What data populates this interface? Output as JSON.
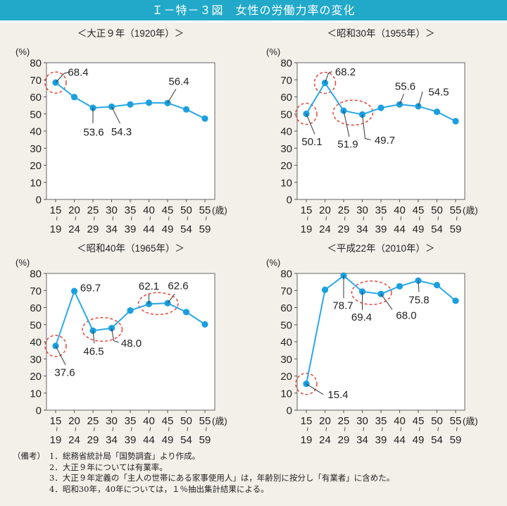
{
  "title": "Ｉ－特－３図　女性の労働力率の変化",
  "colors": {
    "title_bar": "#22a9c9",
    "line": "#2aa8e8",
    "marker": "#1a9fe0",
    "highlight_ellipse": "#e2473a",
    "background": "#f3f0e9"
  },
  "chart_data": [
    {
      "type": "line",
      "title": "＜大正９年（1920年）＞",
      "ylabel": "(%)",
      "xunit": "(歳)",
      "ylim": [
        0,
        80
      ],
      "yticks": [
        0,
        10,
        20,
        30,
        40,
        50,
        60,
        70,
        80
      ],
      "grid": false,
      "categories": [
        "15～19",
        "20～24",
        "25～29",
        "30～34",
        "35～39",
        "40～44",
        "45～49",
        "50～54",
        "55～59"
      ],
      "values": [
        68.4,
        59.9,
        53.6,
        54.3,
        55.6,
        56.6,
        56.4,
        52.7,
        47.3
      ],
      "data_labels": [
        "68.4",
        null,
        "53.6",
        "54.3",
        null,
        null,
        "56.4",
        null,
        null
      ],
      "highlighted": [
        [
          0
        ]
      ]
    },
    {
      "type": "line",
      "title": "＜昭和30年（1955年）＞",
      "ylabel": "(%)",
      "xunit": "(歳)",
      "ylim": [
        0,
        80
      ],
      "yticks": [
        0,
        10,
        20,
        30,
        40,
        50,
        60,
        70,
        80
      ],
      "grid": false,
      "categories": [
        "15～19",
        "20～24",
        "25～29",
        "30～34",
        "35～39",
        "40～44",
        "45～49",
        "50～54",
        "55～59"
      ],
      "values": [
        50.1,
        68.2,
        51.9,
        49.7,
        53.6,
        55.6,
        54.5,
        51.3,
        45.8
      ],
      "data_labels": [
        "50.1",
        "68.2",
        "51.9",
        "49.7",
        null,
        "55.6",
        "54.5",
        null,
        null
      ],
      "highlighted": [
        [
          0
        ],
        [
          1
        ],
        [
          2,
          3
        ]
      ]
    },
    {
      "type": "line",
      "title": "＜昭和40年（1965年）＞",
      "ylabel": "(%)",
      "xunit": "(歳)",
      "ylim": [
        0,
        80
      ],
      "yticks": [
        0,
        10,
        20,
        30,
        40,
        50,
        60,
        70,
        80
      ],
      "grid": false,
      "categories": [
        "15～19",
        "20～24",
        "25～29",
        "30～34",
        "35～39",
        "40～44",
        "45～49",
        "50～54",
        "55～59"
      ],
      "values": [
        37.6,
        69.7,
        46.5,
        48.0,
        58.3,
        62.1,
        62.6,
        57.4,
        50.2
      ],
      "data_labels": [
        "37.6",
        "69.7",
        "46.5",
        "48.0",
        null,
        "62.1",
        "62.6",
        null,
        null
      ],
      "highlighted": [
        [
          0
        ],
        [
          2,
          3
        ],
        [
          5,
          6
        ]
      ]
    },
    {
      "type": "line",
      "title": "＜平成22年（2010年）＞",
      "ylabel": "(%)",
      "xunit": "(歳)",
      "ylim": [
        0,
        80
      ],
      "yticks": [
        0,
        10,
        20,
        30,
        40,
        50,
        60,
        70,
        80
      ],
      "grid": false,
      "categories": [
        "15～19",
        "20～24",
        "25～29",
        "30～34",
        "35～39",
        "40～44",
        "45～49",
        "50～54",
        "55～59"
      ],
      "values": [
        15.4,
        70.4,
        78.7,
        69.4,
        68.0,
        72.5,
        75.8,
        73.2,
        64.0
      ],
      "data_labels": [
        "15.4",
        null,
        "78.7",
        "69.4",
        "68.0",
        null,
        "75.8",
        null,
        null
      ],
      "highlighted": [
        [
          0
        ],
        [
          3,
          4
        ]
      ]
    }
  ],
  "notes": {
    "head": "（備考）",
    "items": [
      "1．総務省統計局「国勢調査」より作成。",
      "2．大正９年については有業率。",
      "3．大正９年定義の「主人の世帯にある家事使用人」は，年齢別に按分し「有業者」に含めた。",
      "4．昭和30年，40年については，１％抽出集計結果による。"
    ]
  }
}
